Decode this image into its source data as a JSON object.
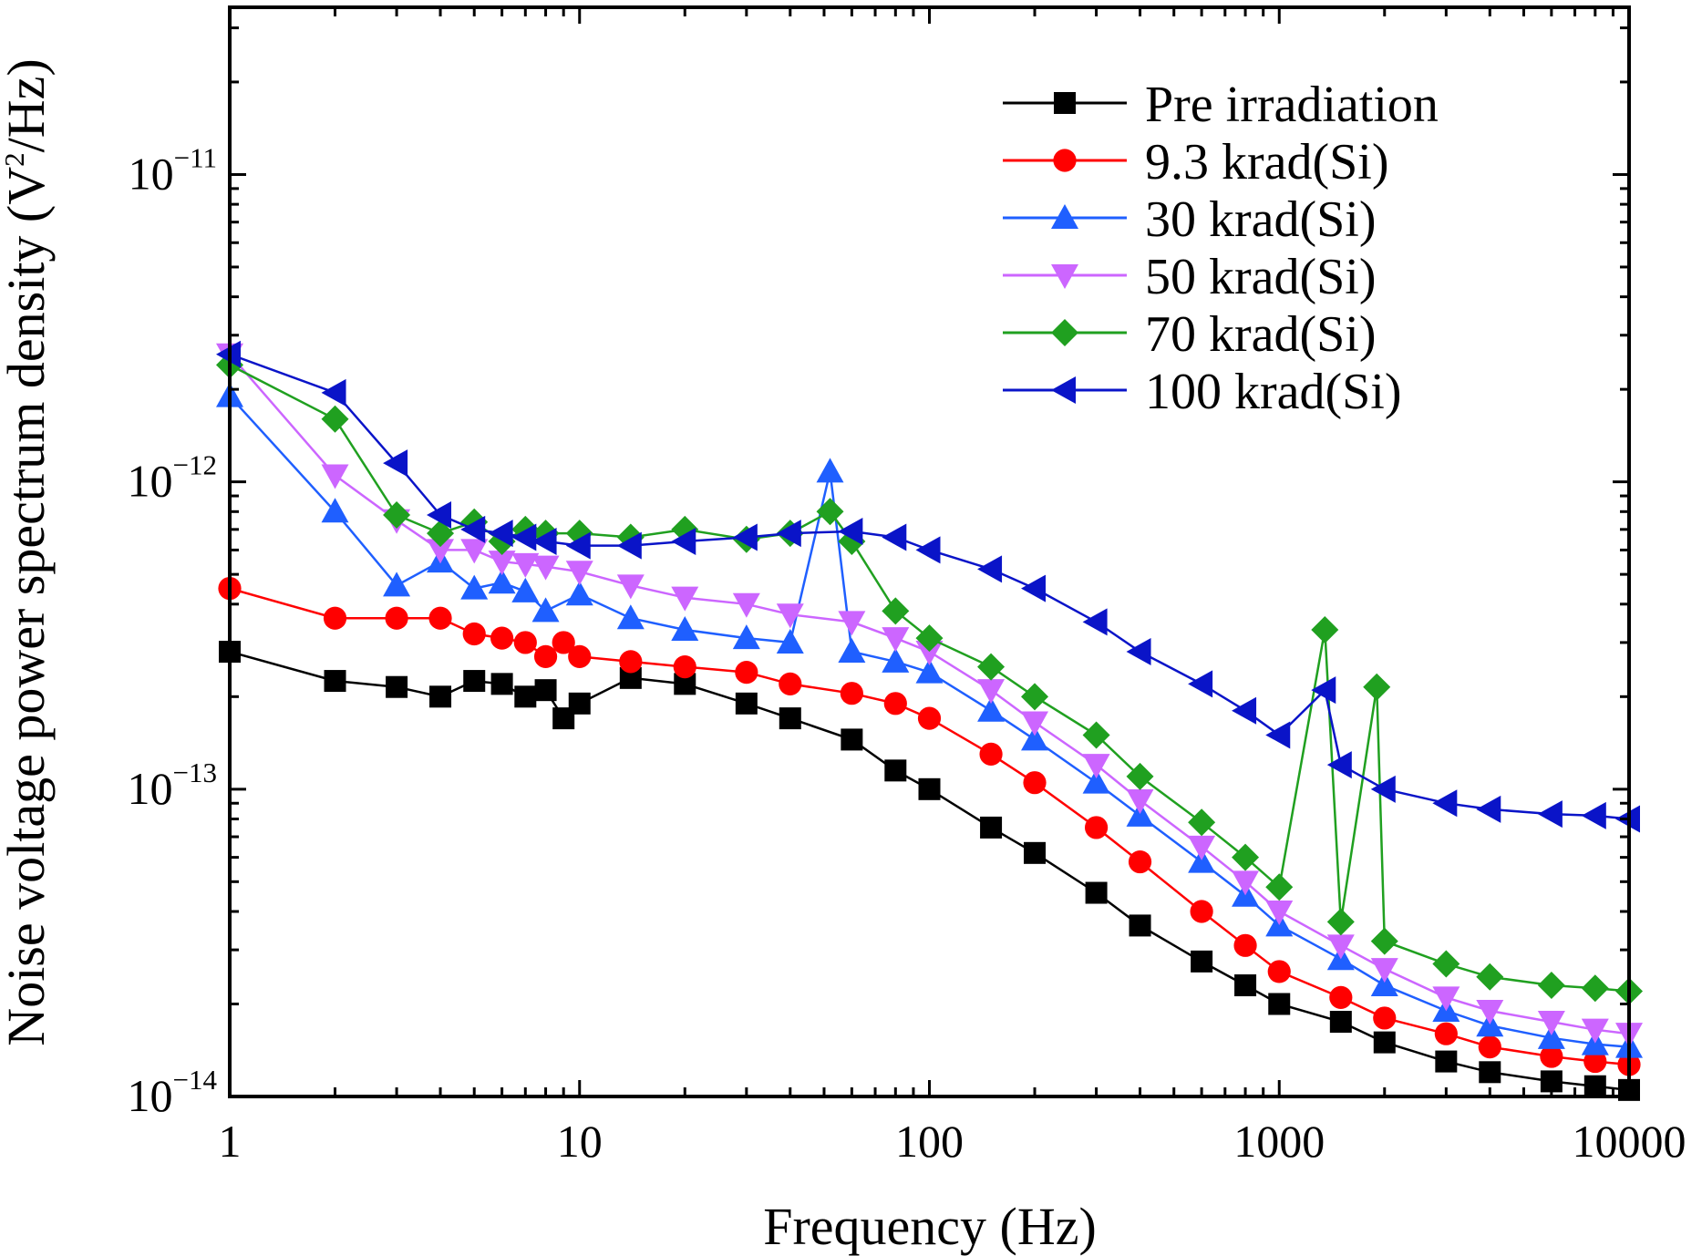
{
  "chart_data": {
    "type": "scatter",
    "title": "",
    "xlabel": "Frequency (Hz)",
    "ylabel_parts": {
      "main": "Noise voltage power spectrum density (V",
      "sup": "2",
      "tail": "/Hz)"
    },
    "xscale": "log",
    "yscale": "log",
    "xlim": [
      1,
      10000
    ],
    "ylim": [
      1e-14,
      3.5e-11
    ],
    "x_ticks": [
      {
        "value": 1,
        "label": "1"
      },
      {
        "value": 10,
        "label": "10"
      },
      {
        "value": 100,
        "label": "100"
      },
      {
        "value": 1000,
        "label": "1000"
      },
      {
        "value": 10000,
        "label": "10000"
      }
    ],
    "y_ticks": [
      {
        "value": 1e-11,
        "base": "10",
        "exp": "−11"
      },
      {
        "value": 1e-12,
        "base": "10",
        "exp": "−12"
      },
      {
        "value": 1e-13,
        "base": "10",
        "exp": "−13"
      },
      {
        "value": 1e-14,
        "base": "10",
        "exp": "−14"
      }
    ],
    "legend_position": "top-right",
    "grid": false,
    "series": [
      {
        "name": "Pre irradiation",
        "color": "#000000",
        "marker": "square",
        "points": [
          [
            1,
            2.8e-13
          ],
          [
            2,
            2.25e-13
          ],
          [
            3,
            2.15e-13
          ],
          [
            4,
            2e-13
          ],
          [
            5,
            2.25e-13
          ],
          [
            6,
            2.2e-13
          ],
          [
            7,
            2e-13
          ],
          [
            8,
            2.1e-13
          ],
          [
            9,
            1.7e-13
          ],
          [
            10,
            1.9e-13
          ],
          [
            14,
            2.3e-13
          ],
          [
            20,
            2.2e-13
          ],
          [
            30,
            1.9e-13
          ],
          [
            40,
            1.7e-13
          ],
          [
            60,
            1.45e-13
          ],
          [
            80,
            1.15e-13
          ],
          [
            100,
            1e-13
          ],
          [
            150,
            7.5e-14
          ],
          [
            200,
            6.2e-14
          ],
          [
            300,
            4.6e-14
          ],
          [
            400,
            3.6e-14
          ],
          [
            600,
            2.75e-14
          ],
          [
            800,
            2.3e-14
          ],
          [
            1000,
            2e-14
          ],
          [
            1500,
            1.75e-14
          ],
          [
            2000,
            1.5e-14
          ],
          [
            3000,
            1.3e-14
          ],
          [
            4000,
            1.2e-14
          ],
          [
            6000,
            1.12e-14
          ],
          [
            8000,
            1.08e-14
          ],
          [
            10000,
            1.05e-14
          ]
        ]
      },
      {
        "name": "9.3 krad(Si)",
        "color": "#ff0000",
        "marker": "circle",
        "points": [
          [
            1,
            4.5e-13
          ],
          [
            2,
            3.6e-13
          ],
          [
            3,
            3.6e-13
          ],
          [
            4,
            3.6e-13
          ],
          [
            5,
            3.2e-13
          ],
          [
            6,
            3.1e-13
          ],
          [
            7,
            3e-13
          ],
          [
            8,
            2.7e-13
          ],
          [
            9,
            3e-13
          ],
          [
            10,
            2.7e-13
          ],
          [
            14,
            2.6e-13
          ],
          [
            20,
            2.5e-13
          ],
          [
            30,
            2.4e-13
          ],
          [
            40,
            2.2e-13
          ],
          [
            60,
            2.05e-13
          ],
          [
            80,
            1.9e-13
          ],
          [
            100,
            1.7e-13
          ],
          [
            150,
            1.3e-13
          ],
          [
            200,
            1.05e-13
          ],
          [
            300,
            7.5e-14
          ],
          [
            400,
            5.8e-14
          ],
          [
            600,
            4e-14
          ],
          [
            800,
            3.1e-14
          ],
          [
            1000,
            2.55e-14
          ],
          [
            1500,
            2.1e-14
          ],
          [
            2000,
            1.8e-14
          ],
          [
            3000,
            1.6e-14
          ],
          [
            4000,
            1.45e-14
          ],
          [
            6000,
            1.35e-14
          ],
          [
            8000,
            1.3e-14
          ],
          [
            10000,
            1.27e-14
          ]
        ]
      },
      {
        "name": "30 krad(Si)",
        "color": "#1f5fff",
        "marker": "triangle-up",
        "points": [
          [
            1,
            1.9e-12
          ],
          [
            2,
            8e-13
          ],
          [
            3,
            4.6e-13
          ],
          [
            4,
            5.5e-13
          ],
          [
            5,
            4.5e-13
          ],
          [
            6,
            4.7e-13
          ],
          [
            7,
            4.4e-13
          ],
          [
            8,
            3.8e-13
          ],
          [
            10,
            4.3e-13
          ],
          [
            14,
            3.6e-13
          ],
          [
            20,
            3.3e-13
          ],
          [
            30,
            3.1e-13
          ],
          [
            40,
            3e-13
          ],
          [
            52,
            1.08e-12
          ],
          [
            60,
            2.8e-13
          ],
          [
            80,
            2.6e-13
          ],
          [
            100,
            2.4e-13
          ],
          [
            150,
            1.8e-13
          ],
          [
            200,
            1.45e-13
          ],
          [
            300,
            1.05e-13
          ],
          [
            400,
            8.2e-14
          ],
          [
            600,
            5.8e-14
          ],
          [
            800,
            4.5e-14
          ],
          [
            1000,
            3.6e-14
          ],
          [
            1500,
            2.8e-14
          ],
          [
            2000,
            2.3e-14
          ],
          [
            3000,
            1.9e-14
          ],
          [
            4000,
            1.7e-14
          ],
          [
            6000,
            1.55e-14
          ],
          [
            8000,
            1.48e-14
          ],
          [
            10000,
            1.45e-14
          ]
        ]
      },
      {
        "name": "50 krad(Si)",
        "color": "#cc66ff",
        "marker": "triangle-down",
        "points": [
          [
            1,
            2.6e-12
          ],
          [
            2,
            1.05e-12
          ],
          [
            3,
            7.5e-13
          ],
          [
            4,
            6e-13
          ],
          [
            5,
            6e-13
          ],
          [
            6,
            5.5e-13
          ],
          [
            7,
            5.4e-13
          ],
          [
            8,
            5.3e-13
          ],
          [
            10,
            5.1e-13
          ],
          [
            14,
            4.6e-13
          ],
          [
            20,
            4.2e-13
          ],
          [
            30,
            4e-13
          ],
          [
            40,
            3.7e-13
          ],
          [
            60,
            3.5e-13
          ],
          [
            80,
            3.1e-13
          ],
          [
            100,
            2.8e-13
          ],
          [
            150,
            2.1e-13
          ],
          [
            200,
            1.65e-13
          ],
          [
            300,
            1.2e-13
          ],
          [
            400,
            9.2e-14
          ],
          [
            600,
            6.5e-14
          ],
          [
            800,
            5e-14
          ],
          [
            1000,
            4e-14
          ],
          [
            1500,
            3.1e-14
          ],
          [
            2000,
            2.6e-14
          ],
          [
            3000,
            2.1e-14
          ],
          [
            4000,
            1.9e-14
          ],
          [
            6000,
            1.75e-14
          ],
          [
            8000,
            1.65e-14
          ],
          [
            10000,
            1.6e-14
          ]
        ]
      },
      {
        "name": "70 krad(Si)",
        "color": "#20a020",
        "marker": "diamond",
        "points": [
          [
            1,
            2.4e-12
          ],
          [
            2,
            1.6e-12
          ],
          [
            3,
            7.8e-13
          ],
          [
            4,
            6.8e-13
          ],
          [
            5,
            7.4e-13
          ],
          [
            6,
            6.4e-13
          ],
          [
            7,
            7e-13
          ],
          [
            8,
            6.8e-13
          ],
          [
            10,
            6.8e-13
          ],
          [
            14,
            6.6e-13
          ],
          [
            20,
            7e-13
          ],
          [
            30,
            6.5e-13
          ],
          [
            40,
            6.8e-13
          ],
          [
            52,
            8e-13
          ],
          [
            60,
            6.4e-13
          ],
          [
            80,
            3.8e-13
          ],
          [
            100,
            3.1e-13
          ],
          [
            150,
            2.5e-13
          ],
          [
            200,
            2e-13
          ],
          [
            300,
            1.5e-13
          ],
          [
            400,
            1.1e-13
          ],
          [
            600,
            7.8e-14
          ],
          [
            800,
            6e-14
          ],
          [
            1000,
            4.8e-14
          ],
          [
            1350,
            3.3e-13
          ],
          [
            1500,
            3.7e-14
          ],
          [
            1900,
            2.15e-13
          ],
          [
            2000,
            3.2e-14
          ],
          [
            3000,
            2.7e-14
          ],
          [
            4000,
            2.45e-14
          ],
          [
            6000,
            2.3e-14
          ],
          [
            8000,
            2.25e-14
          ],
          [
            10000,
            2.2e-14
          ]
        ]
      },
      {
        "name": "100 krad(Si)",
        "color": "#0a14c8",
        "marker": "triangle-left",
        "points": [
          [
            1,
            2.6e-12
          ],
          [
            2,
            1.95e-12
          ],
          [
            3,
            1.15e-12
          ],
          [
            4,
            7.8e-13
          ],
          [
            5,
            7e-13
          ],
          [
            6,
            6.8e-13
          ],
          [
            7,
            6.6e-13
          ],
          [
            8,
            6.4e-13
          ],
          [
            10,
            6.2e-13
          ],
          [
            14,
            6.2e-13
          ],
          [
            20,
            6.4e-13
          ],
          [
            30,
            6.6e-13
          ],
          [
            40,
            6.8e-13
          ],
          [
            60,
            6.9e-13
          ],
          [
            80,
            6.6e-13
          ],
          [
            100,
            6e-13
          ],
          [
            150,
            5.2e-13
          ],
          [
            200,
            4.5e-13
          ],
          [
            300,
            3.5e-13
          ],
          [
            400,
            2.8e-13
          ],
          [
            600,
            2.2e-13
          ],
          [
            800,
            1.8e-13
          ],
          [
            1000,
            1.5e-13
          ],
          [
            1350,
            2.1e-13
          ],
          [
            1500,
            1.2e-13
          ],
          [
            2000,
            1e-13
          ],
          [
            3000,
            9e-14
          ],
          [
            4000,
            8.6e-14
          ],
          [
            6000,
            8.3e-14
          ],
          [
            8000,
            8.2e-14
          ],
          [
            10000,
            8e-14
          ]
        ]
      }
    ]
  }
}
